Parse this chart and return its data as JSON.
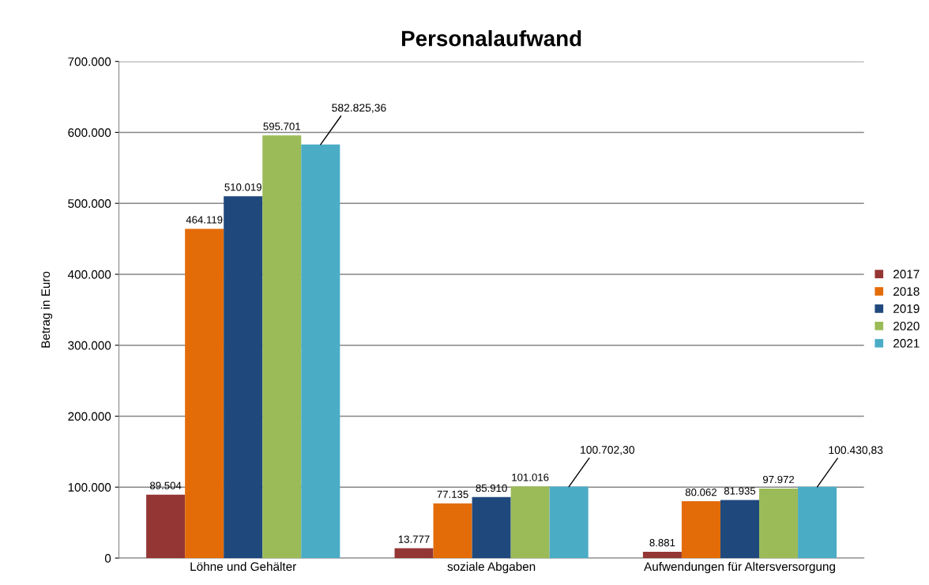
{
  "chart_data": {
    "type": "bar",
    "title": "Personalaufwand",
    "ylabel": "Betrag in Euro",
    "categories": [
      "Löhne und Gehälter",
      "soziale Abgaben",
      "Aufwendungen für Altersversorgung"
    ],
    "series": [
      {
        "name": "2017",
        "color": "#943634",
        "values": [
          89504,
          13777,
          8881
        ],
        "value_labels": [
          "89.504",
          "13.777",
          "8.881"
        ]
      },
      {
        "name": "2018",
        "color": "#e36c09",
        "values": [
          464119,
          77135,
          80062
        ],
        "value_labels": [
          "464.119",
          "77.135",
          "80.062"
        ]
      },
      {
        "name": "2019",
        "color": "#1f497d",
        "values": [
          510019,
          85910,
          81935
        ],
        "value_labels": [
          "510.019",
          "85.910",
          "81.935"
        ]
      },
      {
        "name": "2020",
        "color": "#9bbb59",
        "values": [
          595701,
          101016,
          97972
        ],
        "value_labels": [
          "595.701",
          "101.016",
          "97.972"
        ]
      },
      {
        "name": "2021",
        "color": "#4bacc6",
        "values": [
          582825.36,
          100702.3,
          100430.83
        ],
        "value_labels": [
          "582.825,36",
          "100.702,30",
          "100.430,83"
        ]
      }
    ],
    "ylim": [
      0,
      700000
    ],
    "yticks": [
      0,
      {
        "value": 100000,
        "label": "100.000"
      },
      {
        "value": 200000,
        "label": "200.000"
      },
      {
        "value": 300000,
        "label": "300.000"
      },
      {
        "value": 400000,
        "label": "400.000"
      },
      {
        "value": 500000,
        "label": "500.000"
      },
      {
        "value": 600000,
        "label": "600.000"
      },
      {
        "value": 700000,
        "label": "700.000"
      }
    ],
    "grid": "y",
    "legend": "right"
  }
}
